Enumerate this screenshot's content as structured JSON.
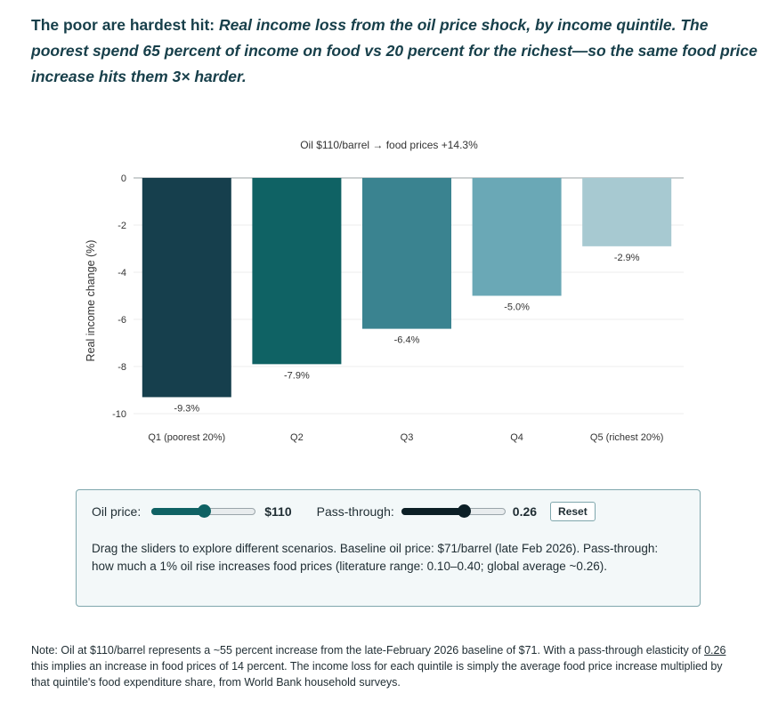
{
  "headline": {
    "lead": "The poor are hardest hit:",
    "sub": "Real income loss from the oil price shock, by income quintile. The poorest spend 65 percent of income on food vs 20 percent for the richest—so the same food price increase hits them 3× harder."
  },
  "chart_data": {
    "type": "bar",
    "title": "Oil $110/barrel → food prices +14.3%",
    "xlabel": "",
    "ylabel": "Real income change (%)",
    "ylim": [
      -10,
      0
    ],
    "yticks": [
      0,
      -2,
      -4,
      -6,
      -8,
      -10
    ],
    "categories": [
      "Q1 (poorest 20%)",
      "Q2",
      "Q3",
      "Q4",
      "Q5 (richest 20%)"
    ],
    "values": [
      -9.3,
      -7.9,
      -6.4,
      -5.0,
      -2.9
    ],
    "value_labels": [
      "-9.3%",
      "-7.9%",
      "-6.4%",
      "-5.0%",
      "-2.9%"
    ],
    "colors": [
      "#163f4d",
      "#0f6264",
      "#3a8390",
      "#6aa8b6",
      "#a7c9d1"
    ],
    "grid": true
  },
  "controls": {
    "oil_label": "Oil price:",
    "oil_value": "$110",
    "oil_fraction": 0.5,
    "pass_label": "Pass-through:",
    "pass_value": "0.26",
    "pass_fraction": 0.6,
    "reset_label": "Reset",
    "help": "Drag the sliders to explore different scenarios. Baseline oil price: $71/barrel (late Feb 2026). Pass-through: how much a 1% oil rise increases food prices (literature range: 0.10–0.40; global average ~0.26)."
  },
  "note": {
    "part1": "Note: Oil at $110/barrel represents a ~55 percent increase from the late-February 2026 baseline of $71. With a pass-through elasticity of ",
    "elasticity": "0.26",
    "part2": " this implies an increase in food prices of 14 percent. The income loss for each quintile is simply the average food price increase multiplied by that quintile's food expenditure share, from World Bank household surveys."
  },
  "colors": {
    "oil_slider": "#0f6264",
    "pass_slider": "#0c1f26",
    "heading": "#173f4a"
  }
}
